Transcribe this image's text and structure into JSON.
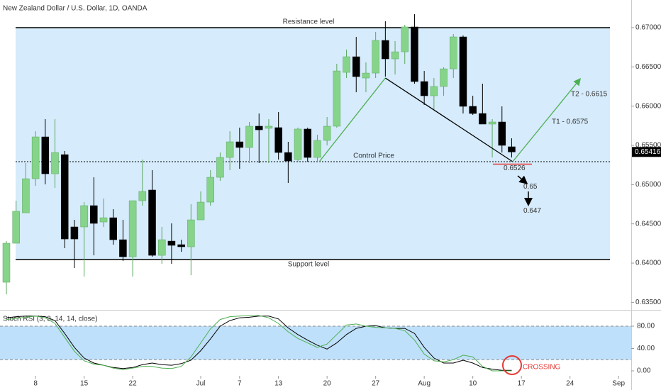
{
  "chart_data": [
    {
      "type": "candlestick",
      "title": "New Zealand Dollar / U.S. Dollar, 1D, OANDA",
      "up_color": "#86d48a",
      "down_color": "#000000",
      "xlim": [
        -0.657,
        64.3
      ],
      "ylim": [
        0.63404,
        0.67352
      ],
      "yticks": [
        {
          "value": 0.635,
          "label": "0.63500"
        },
        {
          "value": 0.64,
          "label": "0.64000"
        },
        {
          "value": 0.645,
          "label": "0.64500"
        },
        {
          "value": 0.65,
          "label": "0.65000"
        },
        {
          "value": 0.655,
          "label": "0.65500"
        },
        {
          "value": 0.66,
          "label": "0.66000"
        },
        {
          "value": 0.665,
          "label": "0.66500"
        },
        {
          "value": 0.67,
          "label": "0.67000"
        }
      ],
      "open": [
        0.63756,
        0.64253,
        0.64641,
        0.65075,
        0.65608,
        0.65138,
        0.65382,
        0.64461,
        0.64461,
        0.64732,
        0.64524,
        0.64578,
        0.64298,
        0.64081,
        0.64795,
        0.64931,
        0.64099,
        0.6428,
        0.64235,
        0.64208,
        0.64551,
        0.64777,
        0.65093,
        0.65346,
        0.65545,
        0.65473,
        0.65744,
        0.65717,
        0.65726,
        0.65409,
        0.65319,
        0.65708,
        0.65346,
        0.65563,
        0.65744,
        0.6643,
        0.66629,
        0.66358,
        0.66421,
        0.66837,
        0.66602,
        0.66692,
        0.67009,
        0.66313,
        0.66132,
        0.6625,
        0.66475,
        0.66882,
        0.65997,
        0.65906,
        0.65771,
        0.65798,
        0.65482
      ],
      "high": [
        0.6428,
        0.64795,
        0.65274,
        0.6568,
        0.65834,
        0.65834,
        0.65428,
        0.64551,
        0.64777,
        0.65093,
        0.64822,
        0.64687,
        0.64551,
        0.64795,
        0.65319,
        0.65184,
        0.64461,
        0.64506,
        0.64298,
        0.6475,
        0.64913,
        0.65184,
        0.65409,
        0.6568,
        0.65726,
        0.65798,
        0.65906,
        0.65834,
        0.65924,
        0.65545,
        0.65726,
        0.65726,
        0.65635,
        0.65861,
        0.66539,
        0.6672,
        0.66882,
        0.66557,
        0.66946,
        0.67081,
        0.66828,
        0.67036,
        0.67171,
        0.66448,
        0.66358,
        0.66494,
        0.66918,
        0.669,
        0.66132,
        0.66286,
        0.65834,
        0.65997,
        0.6559
      ],
      "low": [
        0.63602,
        0.64253,
        0.64641,
        0.64985,
        0.65003,
        0.64958,
        0.6419,
        0.63937,
        0.63828,
        0.64099,
        0.64461,
        0.64235,
        0.64027,
        0.63828,
        0.64732,
        0.64081,
        0.63991,
        0.63991,
        0.64144,
        0.63846,
        0.64551,
        0.64732,
        0.65048,
        0.65184,
        0.65202,
        0.65274,
        0.65274,
        0.65274,
        0.65319,
        0.65021,
        0.65292,
        0.65292,
        0.65292,
        0.655,
        0.65726,
        0.66358,
        0.66177,
        0.66177,
        0.66358,
        0.66376,
        0.66403,
        0.66539,
        0.66286,
        0.66015,
        0.65952,
        0.66132,
        0.66358,
        0.65906,
        0.65888,
        0.65771,
        0.65346,
        0.65409,
        0.65346
      ],
      "close": [
        0.64253,
        0.6466,
        0.65075,
        0.65608,
        0.65138,
        0.65409,
        0.64307,
        0.64307,
        0.64732,
        0.64506,
        0.64578,
        0.64298,
        0.64081,
        0.64795,
        0.64913,
        0.64099,
        0.64298,
        0.64226,
        0.64208,
        0.64551,
        0.64777,
        0.65093,
        0.65346,
        0.65545,
        0.65473,
        0.65744,
        0.65698,
        0.65744,
        0.65409,
        0.65301,
        0.65708,
        0.65346,
        0.65563,
        0.65744,
        0.66448,
        0.66629,
        0.66376,
        0.66421,
        0.66837,
        0.66602,
        0.66692,
        0.67009,
        0.66313,
        0.66132,
        0.6625,
        0.66475,
        0.66882,
        0.65997,
        0.65906,
        0.65771,
        0.65798,
        0.655,
        0.65416
      ],
      "last_price": 0.65416,
      "levels": [
        {
          "label": "Resistance level",
          "value": 0.67,
          "style": "solid"
        },
        {
          "label": "Support level",
          "value": 0.64045,
          "style": "solid"
        },
        {
          "label": "Control Price",
          "value": 0.65292,
          "style": "dotted"
        }
      ],
      "zone_color": "#d6ebfb",
      "trend_lines": [
        {
          "color": "#4caf50",
          "points": [
            [
              32.2,
              0.65292
            ],
            [
              39,
              0.66358
            ]
          ]
        },
        {
          "color": "#000000",
          "points": [
            [
              39,
              0.66358
            ],
            [
              52.1,
              0.65292
            ]
          ]
        },
        {
          "color": "#4caf50",
          "points": [
            [
              52.1,
              0.65292
            ],
            [
              59,
              0.6634
            ]
          ]
        }
      ],
      "trend_labels": [
        "T1 - 0.6575",
        "T2 - 0.6615"
      ],
      "price_marks": [
        0.6526,
        0.65,
        0.647
      ],
      "mark_color": "#e53935"
    },
    {
      "type": "line",
      "title": "Stoch RSI (3, 3, 14, 14, close)",
      "xlim": [
        -0.657,
        64.3
      ],
      "ylim": [
        -8.9,
        105.4
      ],
      "yticks": [
        {
          "value": 0,
          "label": "0.00"
        },
        {
          "value": 40,
          "label": "40.00"
        },
        {
          "value": 80,
          "label": "80.00"
        }
      ],
      "band": [
        20,
        80
      ],
      "band_color": "#bfe0fa",
      "xticks": [
        {
          "value": 3,
          "label": "8"
        },
        {
          "value": 8,
          "label": "15"
        },
        {
          "value": 13,
          "label": "22"
        },
        {
          "value": 20,
          "label": "Jul"
        },
        {
          "value": 24,
          "label": "7"
        },
        {
          "value": 28,
          "label": "13"
        },
        {
          "value": 33,
          "label": "20"
        },
        {
          "value": 38,
          "label": "27"
        },
        {
          "value": 43,
          "label": "Aug"
        },
        {
          "value": 48,
          "label": "10"
        },
        {
          "value": 53,
          "label": "17"
        },
        {
          "value": 58,
          "label": "24"
        },
        {
          "value": 63,
          "label": "Sep"
        }
      ],
      "series": [
        {
          "color": "#000000",
          "values": [
            95,
            97,
            98,
            98,
            97,
            90,
            67,
            42,
            23,
            14,
            10,
            6,
            4,
            6,
            11,
            14,
            11,
            10,
            13,
            19,
            36,
            57,
            80,
            90,
            95,
            96,
            98,
            98,
            93,
            77,
            65,
            55,
            46,
            39,
            50,
            65,
            76,
            80,
            81,
            77,
            76,
            76,
            67,
            42,
            23,
            14,
            14,
            19,
            14,
            6,
            3,
            1,
            1
          ]
        },
        {
          "color": "#4caf50",
          "values": [
            92,
            94,
            96,
            98,
            95,
            85,
            60,
            35,
            18,
            12,
            10,
            5,
            2,
            5,
            8,
            8,
            5,
            4,
            8,
            25,
            50,
            75,
            92,
            97,
            98,
            99,
            99,
            95,
            85,
            70,
            58,
            50,
            42,
            48,
            65,
            82,
            84,
            80,
            78,
            77,
            76,
            72,
            55,
            30,
            18,
            16,
            20,
            28,
            25,
            8,
            0,
            0,
            0
          ]
        }
      ],
      "annotation": "CROSSING",
      "annotation_color": "#e53935"
    }
  ]
}
